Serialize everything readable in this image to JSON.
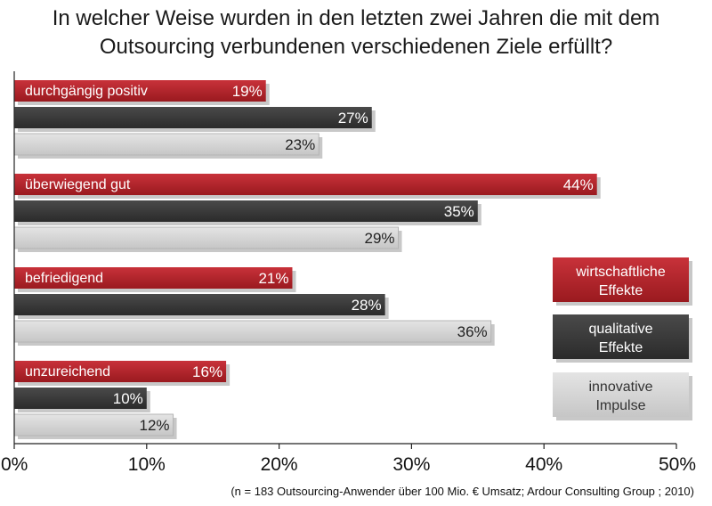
{
  "chart_data": {
    "type": "bar",
    "orientation": "horizontal",
    "title_lines": [
      "In welcher Weise wurden in den letzten zwei Jahren die mit dem",
      "Outsourcing verbundenen verschiedenen Ziele erfüllt?"
    ],
    "categories": [
      "durchgängig positiv",
      "überwiegend gut",
      "befriedigend",
      "unzureichend"
    ],
    "series": [
      {
        "name": "wirtschaftliche Effekte",
        "legend_lines": [
          "wirtschaftliche",
          "Effekte"
        ],
        "color": "#b01e23",
        "label_color": "#ffffff",
        "values": [
          19,
          44,
          21,
          16
        ],
        "labels": [
          "19%",
          "44%",
          "21%",
          "16%"
        ]
      },
      {
        "name": "qualitative Effekte",
        "legend_lines": [
          "qualitative",
          "Effekte"
        ],
        "color": "#3a3a3a",
        "label_color": "#ffffff",
        "values": [
          27,
          35,
          28,
          10
        ],
        "labels": [
          "27%",
          "35%",
          "28%",
          "10%"
        ]
      },
      {
        "name": "innovative Impulse",
        "legend_lines": [
          "innovative",
          "Impulse"
        ],
        "color": "#d3d3d3",
        "label_color": "#222222",
        "values": [
          23,
          29,
          36,
          12
        ],
        "labels": [
          "23%",
          "29%",
          "36%",
          "12%"
        ]
      }
    ],
    "xlim": [
      0,
      50
    ],
    "xticks": [
      0,
      10,
      20,
      30,
      40,
      50
    ],
    "xtick_labels": [
      "0%",
      "10%",
      "20%",
      "30%",
      "40%",
      "50%"
    ],
    "grid": false,
    "legend_position": "right",
    "source_note": "(n = 183 Outsourcing-Anwender über 100 Mio. € Umsatz; Ardour Consulting Group ; 2010)"
  }
}
